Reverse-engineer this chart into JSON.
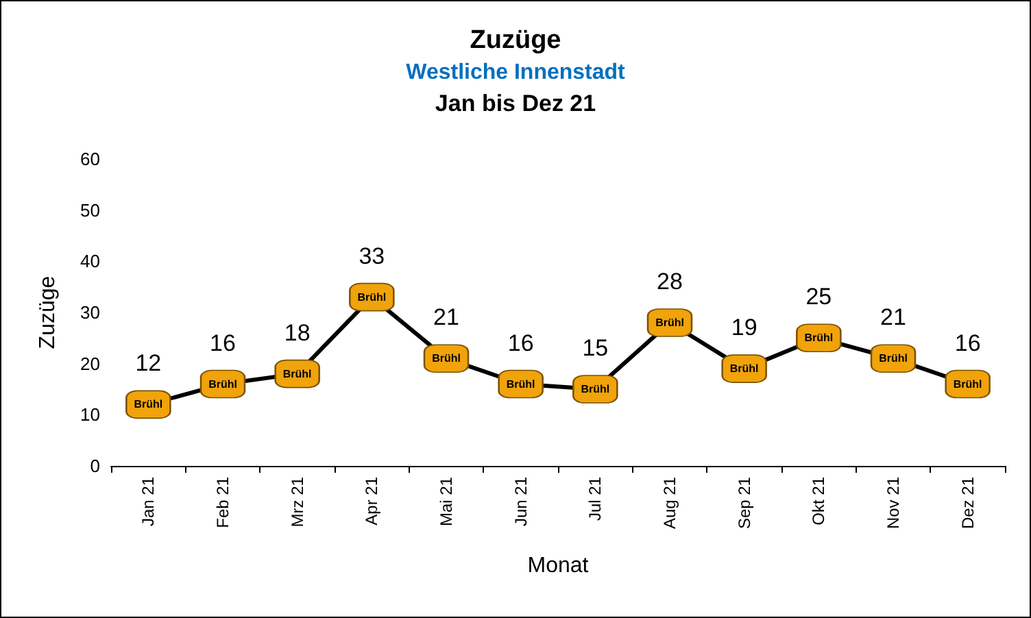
{
  "chart_data": {
    "type": "line",
    "title": "Zuzüge",
    "subtitle": "Westliche Innenstadt",
    "annotations": [
      "Jan bis Dez 21"
    ],
    "xlabel": "Monat",
    "ylabel": "Zuzüge",
    "categories": [
      "Jan 21",
      "Feb 21",
      "Mrz 21",
      "Apr 21",
      "Mai 21",
      "Jun 21",
      "Jul 21",
      "Aug 21",
      "Sep 21",
      "Okt 21",
      "Nov 21",
      "Dez 21"
    ],
    "series": [
      {
        "name": "Brühl",
        "color": "#000000",
        "values": [
          12,
          16,
          18,
          33,
          21,
          16,
          15,
          28,
          19,
          25,
          21,
          16
        ]
      }
    ],
    "ylim": [
      0,
      60
    ],
    "yticks": [
      0,
      10,
      20,
      30,
      40,
      50,
      60
    ],
    "grid": false,
    "legend": false,
    "marker": "square",
    "line_style": "solid",
    "data_labels": true
  }
}
